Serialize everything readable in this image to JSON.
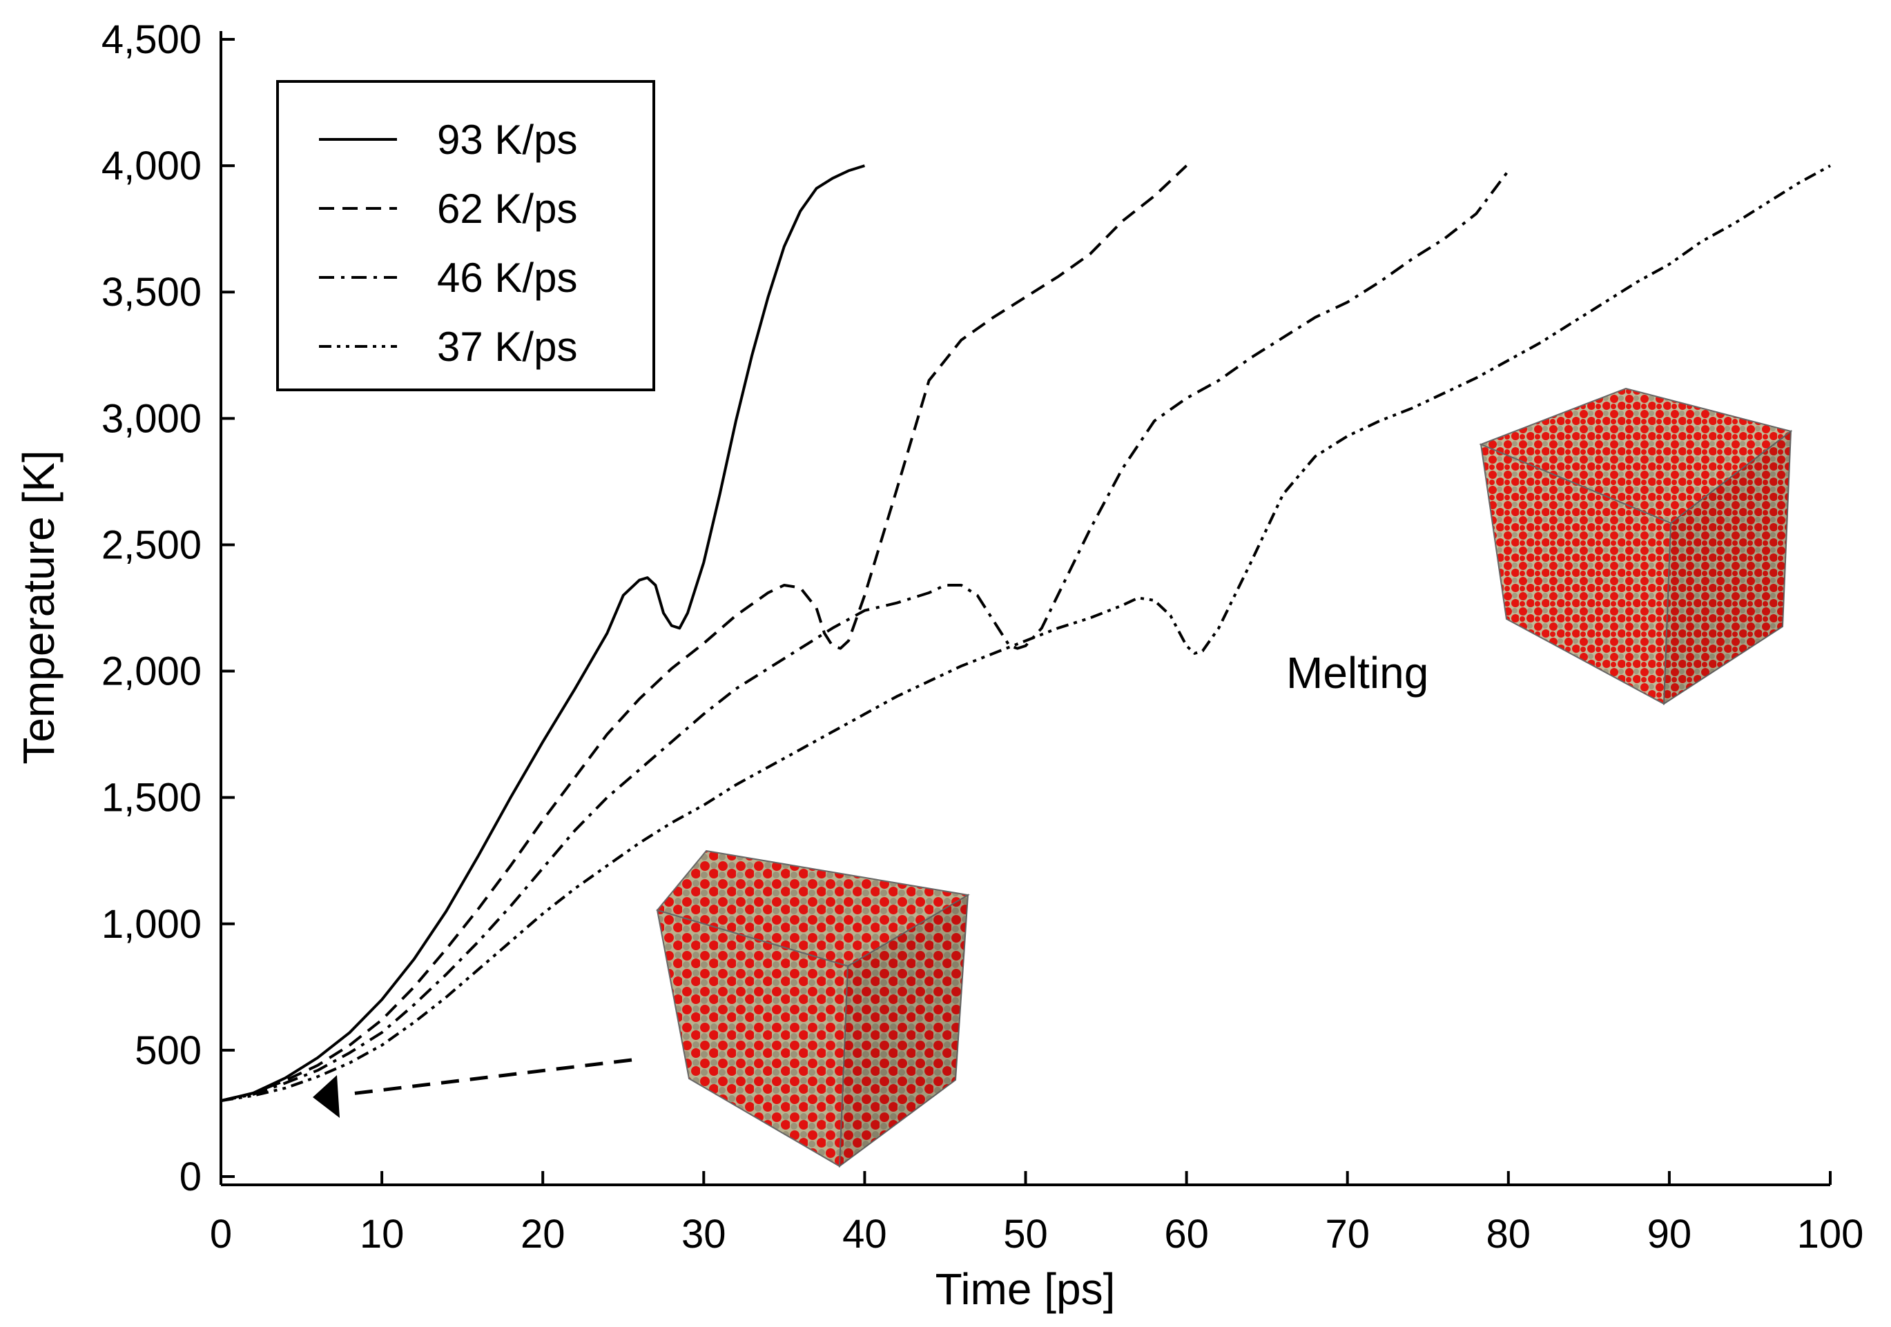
{
  "chart_data": {
    "type": "line",
    "title": "",
    "xlabel": "Time [ps]",
    "ylabel": "Temperature [K]",
    "xlim": [
      0,
      100
    ],
    "ylim": [
      0,
      4500
    ],
    "xticks": [
      0,
      10,
      20,
      30,
      40,
      50,
      60,
      70,
      80,
      90,
      100
    ],
    "yticks": [
      0,
      500,
      1000,
      1500,
      2000,
      2500,
      3000,
      3500,
      4000,
      4500
    ],
    "xtick_labels": [
      "0",
      "10",
      "20",
      "30",
      "40",
      "50",
      "60",
      "70",
      "80",
      "90",
      "100"
    ],
    "ytick_labels": [
      "0",
      "500",
      "1,000",
      "1,500",
      "2,000",
      "2,500",
      "3,000",
      "3,500",
      "4,000",
      "4,500"
    ],
    "legend": {
      "position": "top-left"
    },
    "annotations": {
      "melting_label": "Melting"
    },
    "series": [
      {
        "name": "93 K/ps",
        "style": "solid",
        "x": [
          0,
          2,
          4,
          6,
          8,
          10,
          12,
          14,
          16,
          18,
          20,
          22,
          24,
          25,
          26,
          26.5,
          27,
          27.5,
          28,
          28.5,
          29,
          30,
          31,
          32,
          33,
          34,
          35,
          36,
          37,
          38,
          39,
          40
        ],
        "y": [
          300,
          330,
          390,
          470,
          570,
          700,
          860,
          1050,
          1270,
          1500,
          1720,
          1930,
          2150,
          2300,
          2360,
          2370,
          2340,
          2230,
          2180,
          2170,
          2230,
          2430,
          2700,
          2990,
          3250,
          3480,
          3680,
          3820,
          3910,
          3950,
          3980,
          4000
        ]
      },
      {
        "name": "62 K/ps",
        "style": "dashed",
        "x": [
          0,
          2,
          4,
          6,
          8,
          10,
          12,
          14,
          16,
          18,
          20,
          22,
          24,
          26,
          28,
          30,
          32,
          34,
          35,
          36,
          37,
          37.5,
          38,
          38.5,
          39,
          40,
          42,
          44,
          46,
          48,
          50,
          52,
          54,
          56,
          58,
          60
        ],
        "y": [
          300,
          330,
          380,
          440,
          520,
          620,
          750,
          900,
          1060,
          1230,
          1410,
          1580,
          1750,
          1890,
          2010,
          2110,
          2220,
          2310,
          2340,
          2330,
          2250,
          2150,
          2100,
          2090,
          2120,
          2300,
          2720,
          3150,
          3310,
          3400,
          3480,
          3560,
          3650,
          3780,
          3880,
          4000
        ]
      },
      {
        "name": "46 K/ps",
        "style": "dashdot",
        "x": [
          0,
          2,
          4,
          6,
          8,
          10,
          12,
          14,
          16,
          18,
          20,
          22,
          24,
          26,
          28,
          30,
          32,
          34,
          36,
          38,
          40,
          42,
          44,
          45,
          46,
          47,
          48,
          48.5,
          49,
          49.5,
          50,
          51,
          52,
          54,
          56,
          58,
          60,
          62,
          64,
          66,
          68,
          70,
          72,
          74,
          76,
          78,
          80
        ],
        "y": [
          300,
          325,
          370,
          420,
          490,
          570,
          680,
          800,
          930,
          1070,
          1220,
          1370,
          1500,
          1610,
          1720,
          1830,
          1930,
          2010,
          2090,
          2170,
          2240,
          2270,
          2310,
          2340,
          2340,
          2300,
          2200,
          2150,
          2100,
          2090,
          2100,
          2170,
          2300,
          2560,
          2800,
          2990,
          3080,
          3150,
          3240,
          3320,
          3400,
          3460,
          3540,
          3630,
          3710,
          3810,
          3980
        ]
      },
      {
        "name": "37 K/ps",
        "style": "dashdotdot",
        "x": [
          0,
          2,
          4,
          6,
          8,
          10,
          12,
          14,
          16,
          18,
          20,
          22,
          24,
          26,
          28,
          30,
          32,
          34,
          36,
          38,
          40,
          42,
          44,
          46,
          48,
          50,
          52,
          54,
          56,
          57,
          58,
          59,
          60,
          60.5,
          61,
          62,
          64,
          66,
          68,
          70,
          72,
          74,
          76,
          78,
          80,
          82,
          84,
          86,
          88,
          90,
          92,
          94,
          96,
          98,
          100
        ],
        "y": [
          300,
          320,
          350,
          395,
          450,
          520,
          610,
          710,
          820,
          930,
          1040,
          1140,
          1230,
          1320,
          1400,
          1470,
          1550,
          1620,
          1690,
          1760,
          1830,
          1900,
          1960,
          2020,
          2070,
          2120,
          2170,
          2210,
          2260,
          2290,
          2280,
          2220,
          2100,
          2070,
          2080,
          2170,
          2430,
          2700,
          2850,
          2930,
          2990,
          3040,
          3100,
          3160,
          3230,
          3300,
          3380,
          3460,
          3540,
          3610,
          3700,
          3770,
          3850,
          3930,
          4000
        ]
      }
    ]
  }
}
